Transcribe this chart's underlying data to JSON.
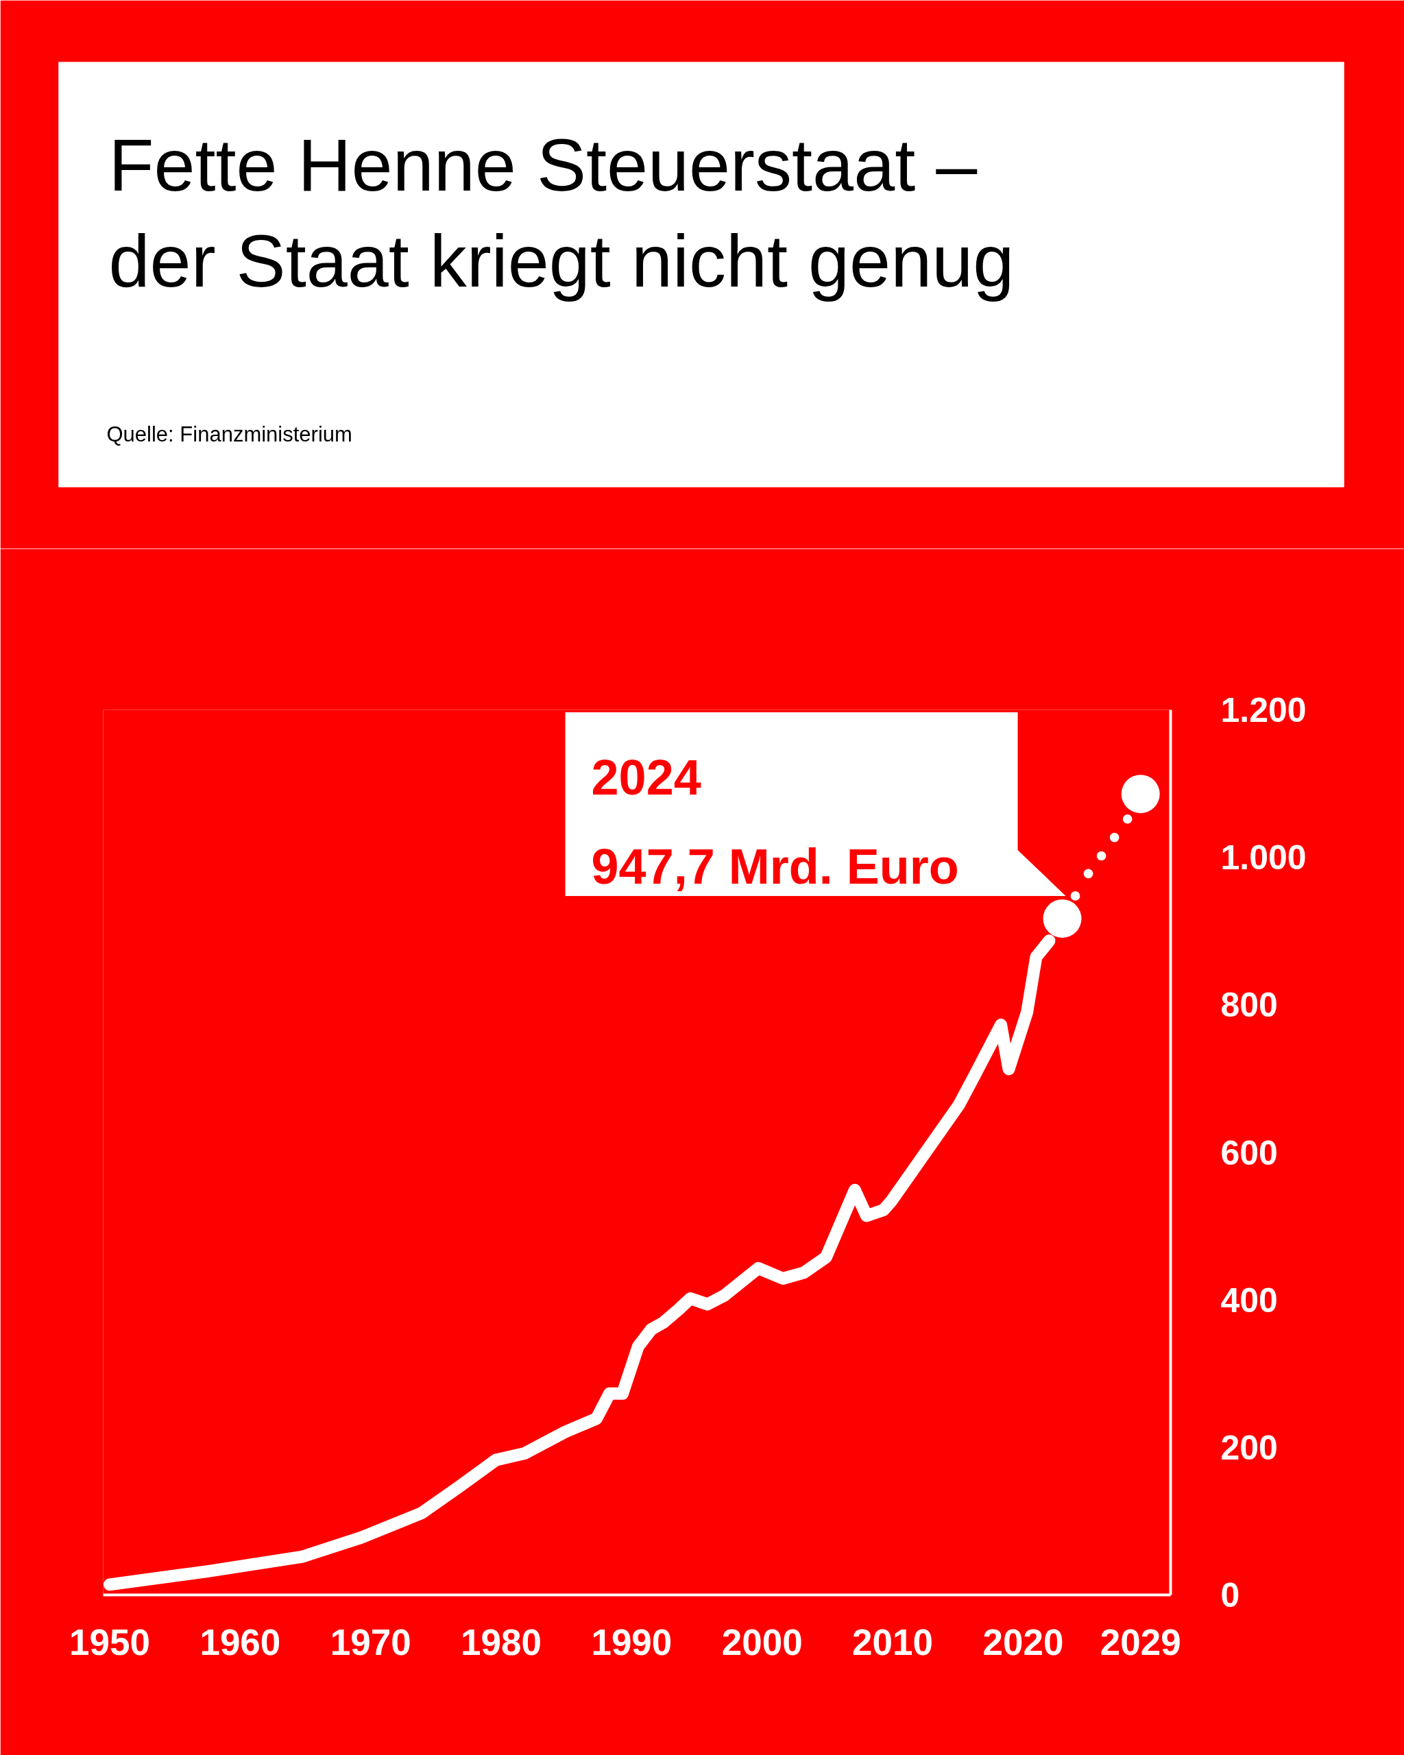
{
  "chart_data": {
    "type": "line",
    "title": "Fette Henne Steuerstaat – der Staat kriegt nicht genug",
    "annotations": [
      "Quelle: Finanzministerium",
      {
        "text": "2024\n947,7 Mrd. Euro",
        "x": 2024,
        "y": 947.7
      }
    ],
    "series": [
      {
        "color": "#ffffff",
        "x": [
          1950.0,
          1957.5,
          1964.8,
          1969.3,
          1973.9,
          1976.8,
          1979.6,
          1981.8,
          1984.9,
          1987.3,
          1988.3,
          1989.3,
          1990.5,
          1991.5,
          1992.4,
          1993.6,
          1994.5,
          1995.8,
          1997.1,
          1999.7,
          2001.6,
          2003.2,
          2004.9,
          2007.1,
          2008.0,
          2009.3,
          2009.9,
          2015.1,
          2016.3,
          2018.3,
          2018.9,
          2020.3,
          2021.0,
          2022.0
        ],
        "values": [
          14,
          32,
          52,
          78,
          111,
          147,
          183,
          192,
          221,
          239,
          273,
          273,
          337,
          360,
          369,
          387,
          402,
          394,
          406,
          443,
          429,
          437,
          458,
          549,
          514,
          522,
          534,
          665,
          705,
          773,
          713,
          790,
          865,
          887
        ]
      },
      {
        "type": "bubble",
        "color": "#ffffff",
        "x": [
          2023,
          2024,
          2025,
          2026,
          2027,
          2028,
          2029
        ],
        "values": [
          917,
          947.7,
          978,
          1002,
          1027,
          1052,
          1086
        ],
        "sizes": [
          1,
          0.06,
          0.06,
          0.06,
          0.06,
          0.06,
          1
        ]
      }
    ],
    "xlim": [
      1949.5,
      2031.3
    ],
    "ylim": [
      0,
      1200
    ],
    "xticks": [
      1950,
      1960,
      1970,
      1980,
      1990,
      2000,
      2010,
      2020,
      2029
    ],
    "yticks": [
      0,
      200,
      400,
      600,
      800,
      {
        "value": 1000,
        "label": "1.000"
      },
      {
        "value": 1200,
        "label": "1.200"
      }
    ],
    "grid": false
  }
}
